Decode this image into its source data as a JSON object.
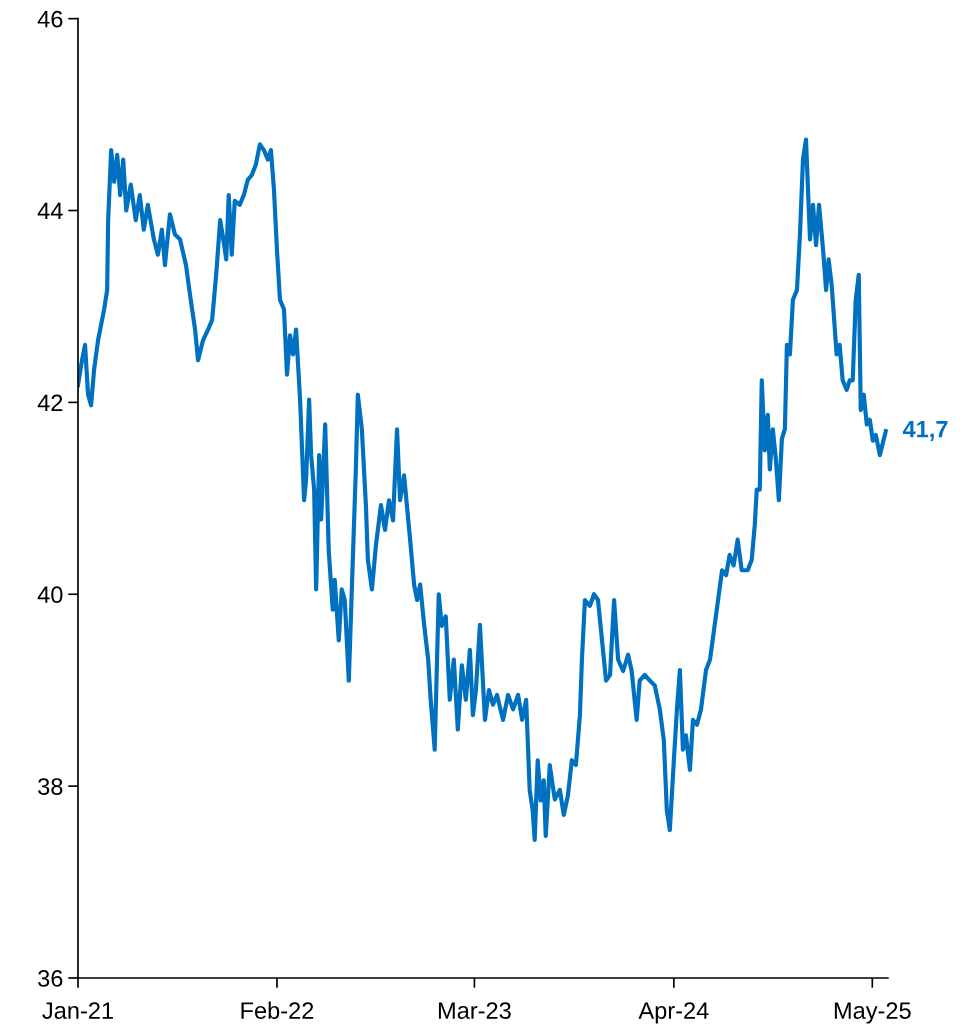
{
  "chart_data": {
    "type": "line",
    "x": [
      "2021-01-01",
      "2021-01-09",
      "2021-01-15",
      "2021-01-21",
      "2021-01-27",
      "2021-02-02",
      "2021-02-10",
      "2021-02-22",
      "2021-02-28",
      "2021-03-02",
      "2021-03-08",
      "2021-03-14",
      "2021-03-20",
      "2021-03-26",
      "2021-04-01",
      "2021-04-07",
      "2021-04-16",
      "2021-04-26",
      "2021-05-04",
      "2021-05-12",
      "2021-05-20",
      "2021-06-01",
      "2021-06-09",
      "2021-06-17",
      "2021-06-23",
      "2021-07-03",
      "2021-07-13",
      "2021-07-23",
      "2021-08-04",
      "2021-08-12",
      "2021-08-22",
      "2021-08-28",
      "2021-09-07",
      "2021-09-17",
      "2021-09-25",
      "2021-10-03",
      "2021-10-11",
      "2021-10-19",
      "2021-10-23",
      "2021-10-28",
      "2021-11-03",
      "2021-11-09",
      "2021-11-19",
      "2021-11-27",
      "2021-12-05",
      "2021-12-13",
      "2021-12-21",
      "2021-12-29",
      "2022-01-06",
      "2022-01-14",
      "2022-01-20",
      "2022-01-26",
      "2022-02-01",
      "2022-02-07",
      "2022-02-15",
      "2022-02-21",
      "2022-02-27",
      "2022-03-05",
      "2022-03-11",
      "2022-03-19",
      "2022-03-27",
      "2022-03-31",
      "2022-04-06",
      "2022-04-10",
      "2022-04-16",
      "2022-04-20",
      "2022-04-26",
      "2022-04-30",
      "2022-05-08",
      "2022-05-15",
      "2022-05-23",
      "2022-05-27",
      "2022-06-04",
      "2022-06-10",
      "2022-06-16",
      "2022-06-24",
      "2022-06-30",
      "2022-07-08",
      "2022-07-12",
      "2022-07-20",
      "2022-07-28",
      "2022-08-01",
      "2022-08-09",
      "2022-08-17",
      "2022-08-27",
      "2022-09-04",
      "2022-09-12",
      "2022-09-20",
      "2022-09-28",
      "2022-10-04",
      "2022-10-12",
      "2022-10-24",
      "2022-11-01",
      "2022-11-07",
      "2022-11-13",
      "2022-11-21",
      "2022-11-29",
      "2022-12-04",
      "2022-12-12",
      "2022-12-20",
      "2022-12-26",
      "2023-01-03",
      "2023-01-11",
      "2023-01-19",
      "2023-01-27",
      "2023-02-04",
      "2023-02-12",
      "2023-02-20",
      "2023-02-26",
      "2023-03-04",
      "2023-03-12",
      "2023-03-22",
      "2023-03-30",
      "2023-04-07",
      "2023-04-15",
      "2023-04-27",
      "2023-05-07",
      "2023-05-17",
      "2023-05-27",
      "2023-06-04",
      "2023-06-12",
      "2023-06-19",
      "2023-06-25",
      "2023-06-29",
      "2023-07-05",
      "2023-07-11",
      "2023-07-17",
      "2023-07-21",
      "2023-07-29",
      "2023-08-08",
      "2023-08-18",
      "2023-08-26",
      "2023-09-03",
      "2023-09-11",
      "2023-09-19",
      "2023-09-27",
      "2023-10-01",
      "2023-10-07",
      "2023-10-17",
      "2023-10-25",
      "2023-11-02",
      "2023-11-10",
      "2023-11-18",
      "2023-11-26",
      "2023-12-04",
      "2023-12-12",
      "2023-12-22",
      "2024-01-01",
      "2024-01-08",
      "2024-01-18",
      "2024-01-24",
      "2024-02-03",
      "2024-02-13",
      "2024-02-23",
      "2024-03-04",
      "2024-03-12",
      "2024-03-18",
      "2024-03-24",
      "2024-04-01",
      "2024-04-07",
      "2024-04-13",
      "2024-04-19",
      "2024-04-25",
      "2024-05-03",
      "2024-05-09",
      "2024-05-17",
      "2024-05-25",
      "2024-06-04",
      "2024-06-12",
      "2024-06-20",
      "2024-06-28",
      "2024-07-06",
      "2024-07-14",
      "2024-07-21",
      "2024-07-29",
      "2024-08-06",
      "2024-08-14",
      "2024-08-26",
      "2024-09-03",
      "2024-09-09",
      "2024-09-13",
      "2024-09-19",
      "2024-09-23",
      "2024-09-29",
      "2024-10-05",
      "2024-10-09",
      "2024-10-15",
      "2024-10-21",
      "2024-10-27",
      "2024-11-02",
      "2024-11-08",
      "2024-11-12",
      "2024-11-18",
      "2024-11-24",
      "2024-12-02",
      "2024-12-08",
      "2024-12-14",
      "2024-12-20",
      "2024-12-28",
      "2025-01-03",
      "2025-01-09",
      "2025-01-15",
      "2025-01-23",
      "2025-01-29",
      "2025-02-03",
      "2025-02-09",
      "2025-02-19",
      "2025-02-25",
      "2025-03-03",
      "2025-03-11",
      "2025-03-17",
      "2025-03-23",
      "2025-03-29",
      "2025-04-04",
      "2025-04-08",
      "2025-04-14",
      "2025-04-20",
      "2025-04-26",
      "2025-05-02",
      "2025-05-08",
      "2025-05-16",
      "2025-05-24",
      "2025-05-28"
    ],
    "series": [
      {
        "color": "#0070c0",
        "values": [
          42.18,
          42.44,
          42.6,
          42.08,
          41.97,
          42.34,
          42.65,
          42.97,
          43.17,
          43.9,
          44.63,
          44.3,
          44.58,
          44.16,
          44.53,
          44.0,
          44.27,
          43.9,
          44.16,
          43.8,
          44.06,
          43.7,
          43.54,
          43.8,
          43.43,
          43.96,
          43.75,
          43.7,
          43.43,
          43.12,
          42.76,
          42.44,
          42.65,
          42.76,
          42.86,
          43.33,
          43.9,
          43.64,
          43.49,
          44.16,
          43.54,
          44.1,
          44.06,
          44.16,
          44.32,
          44.37,
          44.48,
          44.69,
          44.63,
          44.53,
          44.63,
          44.22,
          43.59,
          43.07,
          42.97,
          42.29,
          42.7,
          42.5,
          42.76,
          42.03,
          40.98,
          41.2,
          42.03,
          41.45,
          41.09,
          40.05,
          41.45,
          40.78,
          41.77,
          40.46,
          39.84,
          40.15,
          39.52,
          40.05,
          39.94,
          39.1,
          40.05,
          41.3,
          42.08,
          41.72,
          40.93,
          40.36,
          40.05,
          40.51,
          40.93,
          40.67,
          40.98,
          40.77,
          41.72,
          40.98,
          41.24,
          40.57,
          40.1,
          39.94,
          40.1,
          39.68,
          39.32,
          38.9,
          38.38,
          40.0,
          39.67,
          39.77,
          38.9,
          39.32,
          38.59,
          39.26,
          38.9,
          39.42,
          38.74,
          39.0,
          39.68,
          38.69,
          39.0,
          38.85,
          38.95,
          38.69,
          38.95,
          38.8,
          38.95,
          38.69,
          38.9,
          37.96,
          37.75,
          37.44,
          38.27,
          37.85,
          38.06,
          37.48,
          38.22,
          37.86,
          37.96,
          37.7,
          37.9,
          38.27,
          38.22,
          38.74,
          39.32,
          39.94,
          39.88,
          40.0,
          39.94,
          39.52,
          39.1,
          39.16,
          39.94,
          39.32,
          39.2,
          39.37,
          39.2,
          38.69,
          39.1,
          39.16,
          39.1,
          39.05,
          38.8,
          38.48,
          37.75,
          37.54,
          38.27,
          38.79,
          39.21,
          38.38,
          38.53,
          38.17,
          38.69,
          38.64,
          38.8,
          39.21,
          39.32,
          39.63,
          39.94,
          40.25,
          40.2,
          40.41,
          40.3,
          40.57,
          40.25,
          40.25,
          40.36,
          40.72,
          41.09,
          41.09,
          42.23,
          41.5,
          41.87,
          41.3,
          41.72,
          41.41,
          40.98,
          41.62,
          41.72,
          42.6,
          42.5,
          43.07,
          43.17,
          43.75,
          44.53,
          44.74,
          43.7,
          44.06,
          43.64,
          44.06,
          43.59,
          43.17,
          43.49,
          43.23,
          42.5,
          42.6,
          42.23,
          42.13,
          42.23,
          42.23,
          43.07,
          43.33,
          41.92,
          42.08,
          41.77,
          41.82,
          41.6,
          41.66,
          41.45,
          41.62,
          41.7
        ]
      }
    ],
    "xlim": [
      "2021-01-01",
      "2025-06-01"
    ],
    "xticks": [
      {
        "value": "2021-01-01",
        "label": "Jan-21"
      },
      {
        "value": "2022-02-01",
        "label": "Feb-22"
      },
      {
        "value": "2023-03-01",
        "label": "Mar-23"
      },
      {
        "value": "2024-04-01",
        "label": "Apr-24"
      },
      {
        "value": "2025-05-01",
        "label": "May-25"
      }
    ],
    "ylim": [
      36,
      46
    ],
    "yticks": [
      36,
      38,
      40,
      42,
      44,
      46
    ],
    "grid": false,
    "line_style": "solid",
    "annotations": [
      {
        "text": "41,7",
        "x": "2025-05-28",
        "y": 41.7
      }
    ]
  }
}
